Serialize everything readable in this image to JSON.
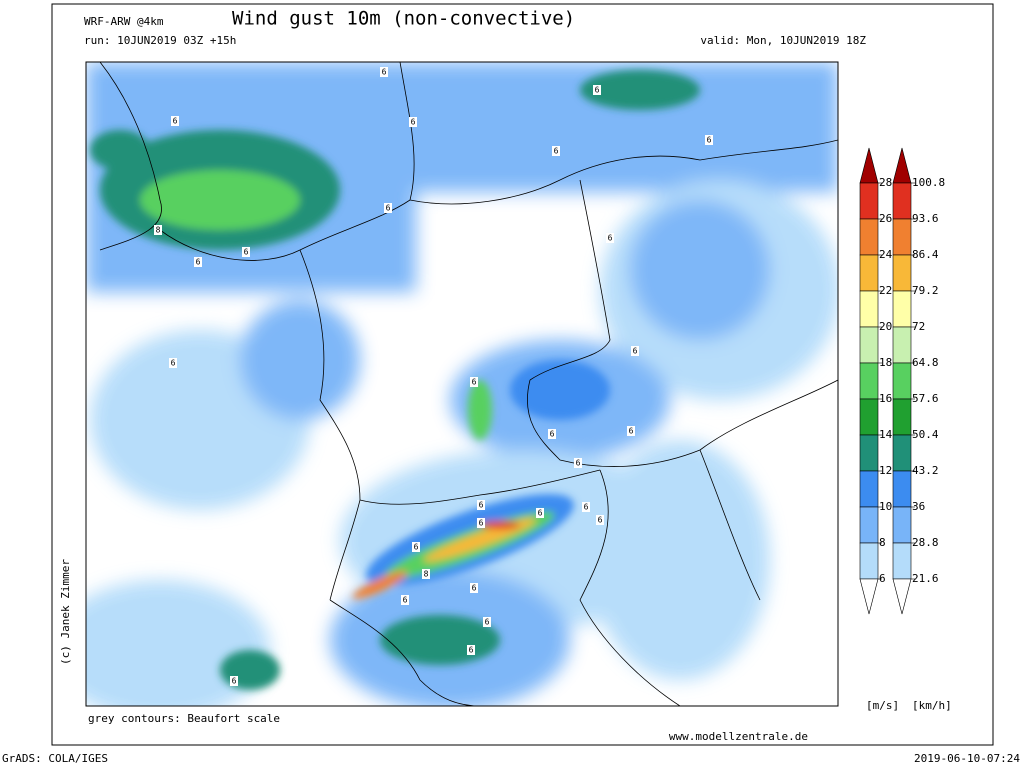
{
  "header": {
    "model": "WRF-ARW @4km",
    "title": "Wind gust 10m (non-convective)",
    "run": "run: 10JUN2019 03Z +15h",
    "valid": "valid: Mon, 10JUN2019 18Z"
  },
  "credit": "(c) Janek Zimmer",
  "contour_note": "grey contours: Beaufort scale",
  "website": "www.modellzentrale.de",
  "footer": {
    "left": "GrADS: COLA/IGES",
    "right": "2019-06-10-07:24"
  },
  "legend": {
    "unit_ms": "[m/s]",
    "unit_kmh": "[km/h]",
    "labels_ms": [
      "28",
      "26",
      "24",
      "22",
      "20",
      "18",
      "16",
      "14",
      "12",
      "10",
      "8",
      "6"
    ],
    "labels_kmh": [
      "100.8",
      "93.6",
      "86.4",
      "79.2",
      "72",
      "64.8",
      "57.6",
      "50.4",
      "43.2",
      "36",
      "28.8",
      "21.6"
    ],
    "colors": [
      "#a00000",
      "#e03020",
      "#f08030",
      "#f8b838",
      "#ffffa8",
      "#c8f0b0",
      "#58d060",
      "#20a030",
      "#209078",
      "#3c8cf0",
      "#78b4f8",
      "#b4dcfa",
      "#ffffff"
    ]
  },
  "contour_labels": [
    "6",
    "6",
    "6",
    "6",
    "6",
    "6",
    "8",
    "6",
    "6",
    "6",
    "6",
    "6",
    "6",
    "6",
    "6",
    "6",
    "6",
    "6",
    "6",
    "6",
    "6",
    "6",
    "6",
    "8",
    "6",
    "6",
    "6",
    "6",
    "6"
  ]
}
